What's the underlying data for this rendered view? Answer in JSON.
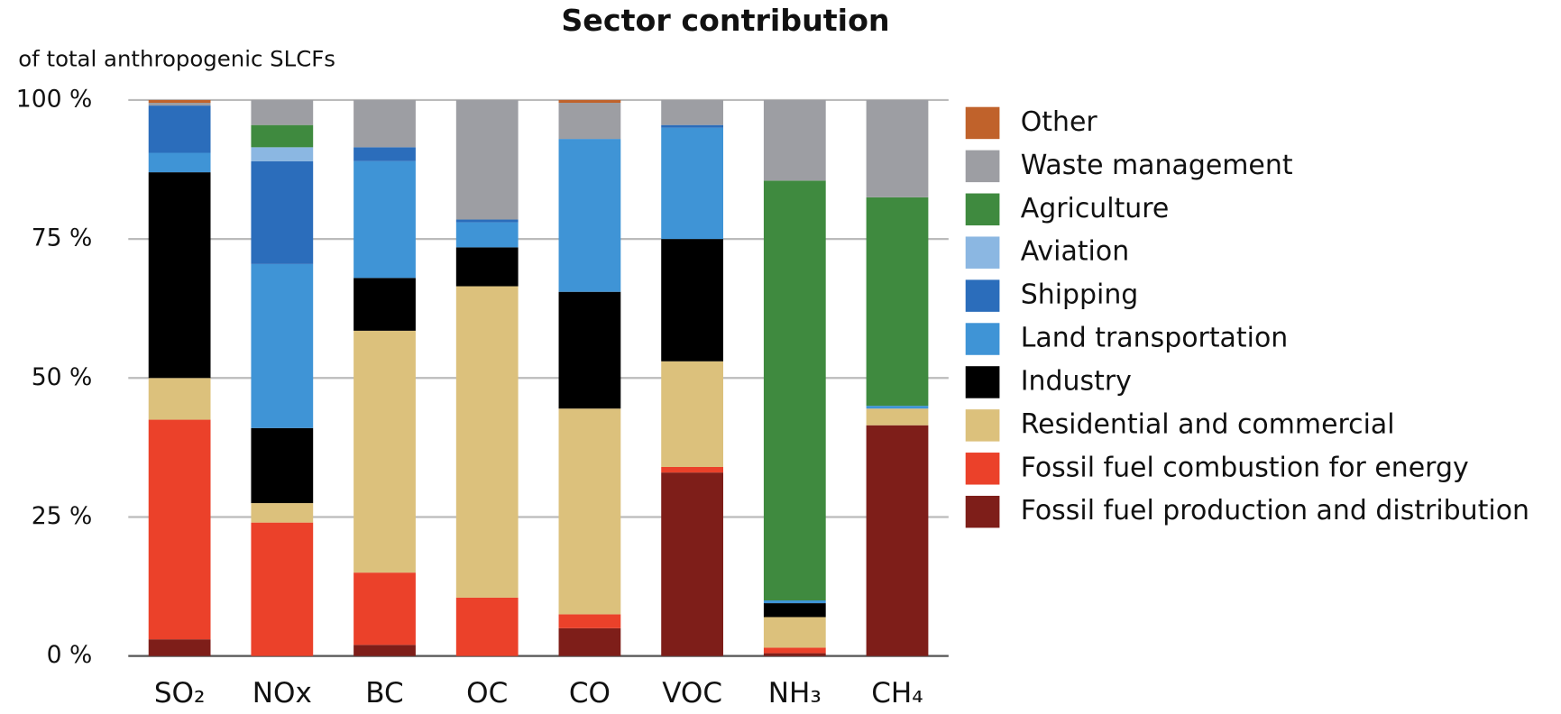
{
  "chart_data": {
    "type": "stacked_bar",
    "title": "Sector contribution",
    "y_label": "of total anthropogenic SLCFs",
    "categories": [
      "SO₂",
      "NOx",
      "BC",
      "OC",
      "CO",
      "VOC",
      "NH₃",
      "CH₄"
    ],
    "series": [
      {
        "name": "Fossil fuel production and distribution",
        "color": "#7e1e19",
        "values": [
          3,
          0,
          2,
          0,
          5,
          33,
          0.5,
          41.5
        ]
      },
      {
        "name": "Fossil fuel combustion for energy",
        "color": "#eb412a",
        "values": [
          39.5,
          24,
          13,
          10.5,
          2.5,
          1,
          1,
          0
        ]
      },
      {
        "name": "Residential and commercial",
        "color": "#dcc17c",
        "values": [
          7.5,
          3.5,
          43.5,
          56,
          37,
          19,
          5.5,
          3
        ]
      },
      {
        "name": "Industry",
        "color": "#000000",
        "values": [
          37,
          13.5,
          9.5,
          7,
          21,
          22,
          2.5,
          0
        ]
      },
      {
        "name": "Land transportation",
        "color": "#3f94d6",
        "values": [
          3.5,
          29.5,
          21,
          4.5,
          27.5,
          20,
          0.5,
          0.5
        ]
      },
      {
        "name": "Shipping",
        "color": "#2b6dbb",
        "values": [
          8.5,
          18.5,
          2.5,
          0.5,
          0,
          0.5,
          0,
          0
        ]
      },
      {
        "name": "Aviation",
        "color": "#8bb7e2",
        "values": [
          0,
          2.5,
          0,
          0,
          0,
          0,
          0,
          0
        ]
      },
      {
        "name": "Agriculture",
        "color": "#3f8a3f",
        "values": [
          0,
          4,
          0,
          0,
          0,
          0,
          75.5,
          37.5
        ]
      },
      {
        "name": "Waste management",
        "color": "#9d9ea3",
        "values": [
          0.5,
          4.5,
          8.5,
          21.5,
          6.5,
          4.5,
          14.5,
          17.5
        ]
      },
      {
        "name": "Other",
        "color": "#c0622b",
        "values": [
          0.5,
          0,
          0,
          0,
          0.5,
          0,
          0,
          0
        ]
      }
    ],
    "ylim": [
      0,
      100
    ],
    "yticks": [
      {
        "value": 0,
        "label": "0 %"
      },
      {
        "value": 25,
        "label": "25 %"
      },
      {
        "value": 50,
        "label": "50 %"
      },
      {
        "value": 75,
        "label": "75 %"
      },
      {
        "value": 100,
        "label": "100 %"
      }
    ],
    "grid": true,
    "legend": "right"
  }
}
